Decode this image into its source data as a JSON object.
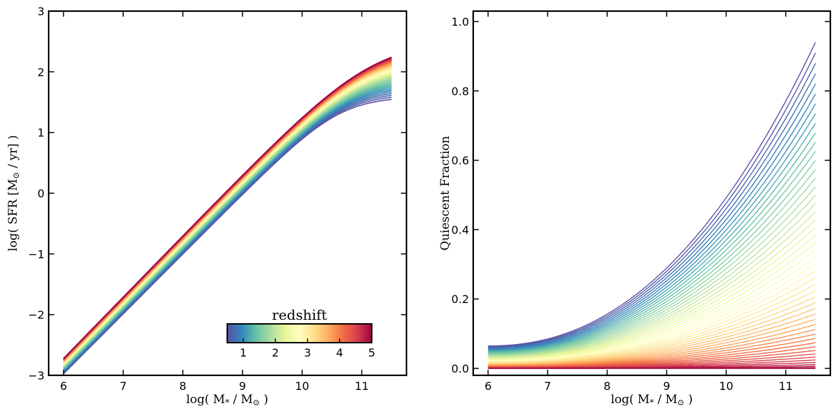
{
  "colors": {
    "colormap": "Spectral_r",
    "stops": [
      "#5e4fa2",
      "#3288bd",
      "#66c2a5",
      "#abdda4",
      "#e6f598",
      "#ffffbf",
      "#fee08b",
      "#fdae61",
      "#f46d43",
      "#d53e4f",
      "#9e0142"
    ]
  },
  "chart_data": [
    {
      "type": "line",
      "xlabel": "log( M_* / M_⊙ )",
      "ylabel": "log( SFR [M_⊙ / yr] )",
      "xlim": [
        5.75,
        11.75
      ],
      "ylim": [
        -3,
        3
      ],
      "xticks": [
        6,
        7,
        8,
        9,
        10,
        11
      ],
      "xtick_labels": [
        "6",
        "7",
        "8",
        "9",
        "10",
        "11"
      ],
      "yticks": [
        -3,
        -2,
        -1,
        0,
        1,
        2,
        3
      ],
      "ytick_labels": [
        "−3",
        "−2",
        "−1",
        "0",
        "1",
        "2",
        "3"
      ],
      "grid": false,
      "colormap": "Spectral_r",
      "series_count": 50,
      "redshift_range": [
        0.5,
        5
      ],
      "series_description": "one curve per redshift z; curves for z=0.5 to z=5",
      "x_range": [
        6,
        11.5
      ],
      "ends": {
        "low_z": {
          "z": 0.5,
          "x": [
            6,
            7,
            8,
            9,
            10,
            10.5,
            11,
            11.5
          ],
          "y": [
            -3.05,
            -2.07,
            -1.08,
            -0.08,
            0.82,
            1.16,
            1.3,
            1.33
          ]
        },
        "high_z": {
          "z": 5,
          "x": [
            6,
            7,
            8,
            9,
            10,
            10.5,
            11,
            11.5
          ],
          "y": [
            -2.7,
            -1.69,
            -0.67,
            0.35,
            1.4,
            1.93,
            2.33,
            2.5
          ]
        }
      },
      "colorbar": {
        "title": "redshift",
        "ticks": [
          "1",
          "2",
          "3",
          "4",
          "5"
        ],
        "range": [
          0.5,
          5
        ],
        "location": "lower-right"
      }
    },
    {
      "type": "line",
      "xlabel": "log( M_* / M_⊙ )",
      "ylabel": "Quiescent Fraction",
      "xlim": [
        5.75,
        11.75
      ],
      "ylim": [
        -0.02,
        1.03
      ],
      "xticks": [
        6,
        7,
        8,
        9,
        10,
        11
      ],
      "xtick_labels": [
        "6",
        "7",
        "8",
        "9",
        "10",
        "11"
      ],
      "yticks": [
        0,
        0.2,
        0.4,
        0.6,
        0.8,
        1.0
      ],
      "ytick_labels": [
        "0.0",
        "0.2",
        "0.4",
        "0.6",
        "0.8",
        "1.0"
      ],
      "grid": false,
      "colormap": "Spectral_r",
      "series_count": 50,
      "redshift_range": [
        0.5,
        5
      ],
      "x_range": [
        6,
        11.5
      ],
      "ends": {
        "low_z": {
          "z": 0.5,
          "x": [
            6,
            7,
            8,
            9,
            10,
            11,
            11.5
          ],
          "y": [
            0.07,
            0.13,
            0.22,
            0.37,
            0.57,
            0.82,
            0.94
          ]
        },
        "high_z": {
          "z": 5,
          "x": [
            6,
            11.5
          ],
          "y": [
            0.0,
            0.0
          ]
        }
      }
    }
  ]
}
